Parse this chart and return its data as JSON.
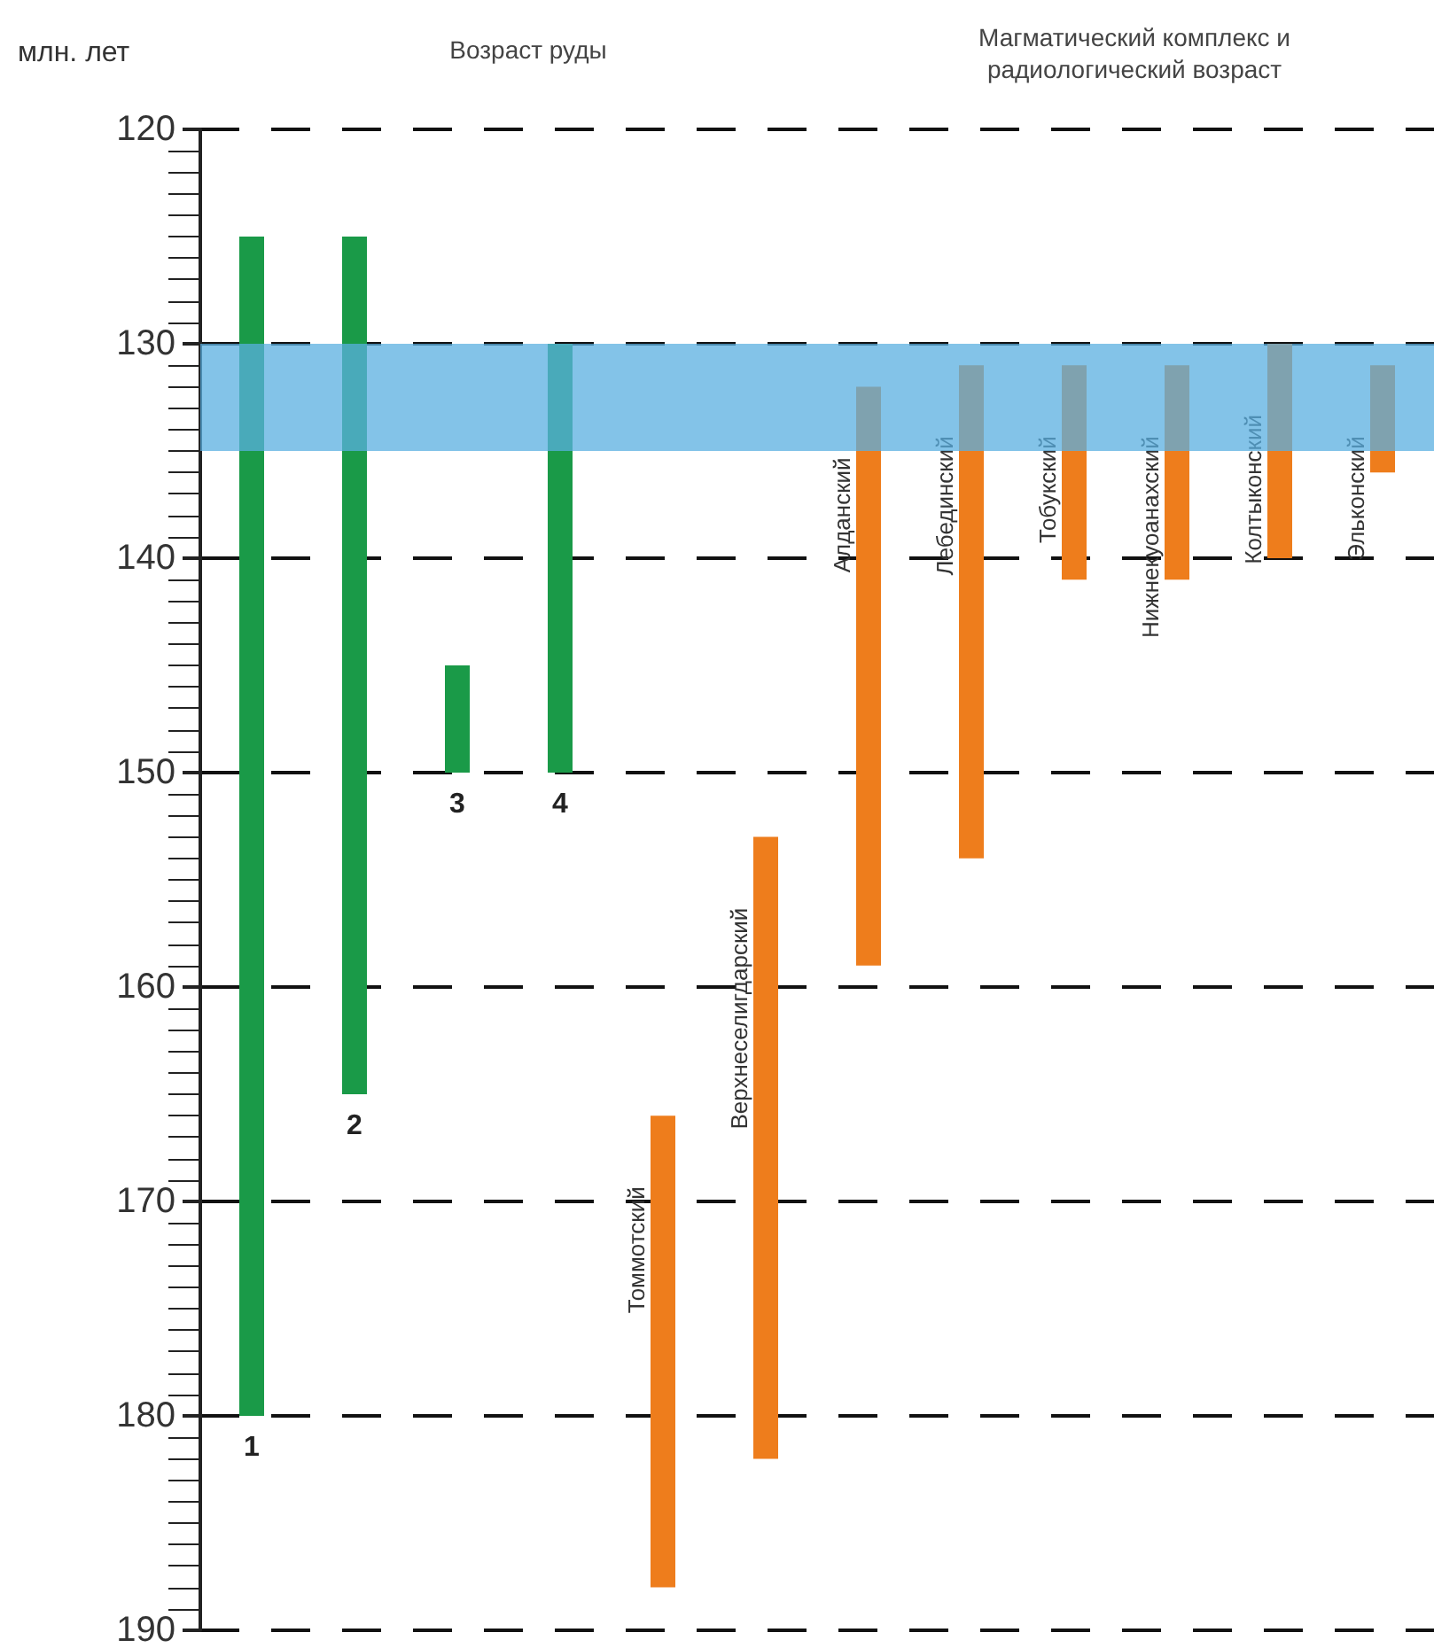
{
  "chart_data": {
    "type": "bar",
    "ylabel": "млн. лет",
    "annotations": [
      "Возраст руды",
      "Магматический комплекс и\nрадиологический возраст"
    ],
    "categories": [
      "1",
      "2",
      "3",
      "4",
      "Томмотский",
      "Верхнеселигдарский",
      "Алданский",
      "Лебединский",
      "Тобукский",
      "Нижнекуоанахский",
      "Колтыконский",
      "Эльконский"
    ],
    "base": [
      125,
      125,
      145,
      130,
      166,
      153,
      132,
      131,
      131,
      131,
      130,
      131
    ],
    "values": [
      55,
      40,
      5,
      20,
      22,
      29,
      27,
      23,
      10,
      10,
      10,
      5
    ],
    "colors": [
      "#1a9a48",
      "#1a9a48",
      "#1a9a48",
      "#1a9a48",
      "#ee7d1c",
      "#ee7d1c",
      "#ee7d1c",
      "#ee7d1c",
      "#ee7d1c",
      "#ee7d1c",
      "#ee7d1c",
      "#ee7d1c"
    ],
    "ylim": [
      190,
      120
    ],
    "yticks": [
      120,
      130,
      140,
      150,
      160,
      170,
      180,
      190
    ],
    "grid": "y",
    "bands": [
      {
        "axis": "y",
        "from": 130,
        "to": 135,
        "color": "#5aafe0"
      }
    ]
  }
}
